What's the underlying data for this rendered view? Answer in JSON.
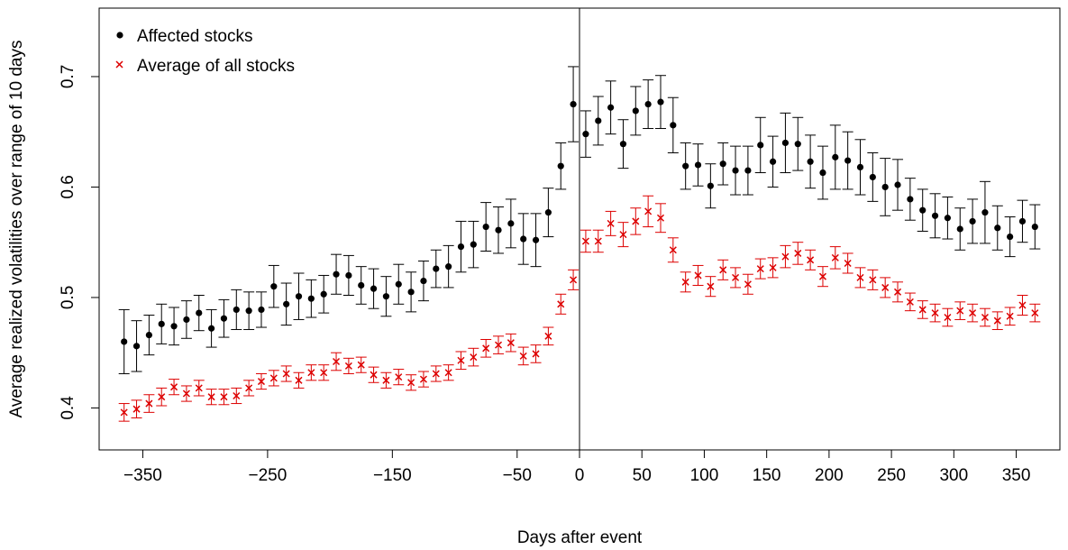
{
  "chart_data": {
    "type": "scatter",
    "title": "",
    "xlabel": "Days after event",
    "ylabel": "Average realized volatilities over range of 10 days",
    "xlim": [
      -385,
      385
    ],
    "ylim": [
      0.362,
      0.762
    ],
    "x_ticks": [
      -350,
      -250,
      -150,
      -50,
      0,
      50,
      100,
      150,
      200,
      250,
      300,
      350
    ],
    "x_tick_labels": [
      "−350",
      "−250",
      "−150",
      "−50",
      "0",
      "50",
      "100",
      "150",
      "200",
      "250",
      "300",
      "350"
    ],
    "y_ticks": [
      0.4,
      0.5,
      0.6,
      0.7
    ],
    "y_tick_labels": [
      "0.4",
      "0.5",
      "0.6",
      "0.7"
    ],
    "vline_x": 0,
    "grid": false,
    "legend_position": "top-left",
    "x": [
      -365,
      -355,
      -345,
      -335,
      -325,
      -315,
      -305,
      -295,
      -285,
      -275,
      -265,
      -255,
      -245,
      -235,
      -225,
      -215,
      -205,
      -195,
      -185,
      -175,
      -165,
      -155,
      -145,
      -135,
      -125,
      -115,
      -105,
      -95,
      -85,
      -75,
      -65,
      -55,
      -45,
      -35,
      -25,
      -15,
      -5,
      5,
      15,
      25,
      35,
      45,
      55,
      65,
      75,
      85,
      95,
      105,
      115,
      125,
      135,
      145,
      155,
      165,
      175,
      185,
      195,
      205,
      215,
      225,
      235,
      245,
      255,
      265,
      275,
      285,
      295,
      305,
      315,
      325,
      335,
      345,
      355,
      365
    ],
    "series": [
      {
        "name": "Affected stocks",
        "marker": "filled-circle",
        "color": "#000000",
        "values": [
          0.46,
          0.456,
          0.466,
          0.476,
          0.474,
          0.48,
          0.486,
          0.472,
          0.481,
          0.489,
          0.488,
          0.489,
          0.51,
          0.494,
          0.501,
          0.499,
          0.503,
          0.521,
          0.52,
          0.511,
          0.508,
          0.501,
          0.512,
          0.505,
          0.515,
          0.526,
          0.528,
          0.546,
          0.548,
          0.564,
          0.561,
          0.567,
          0.553,
          0.552,
          0.577,
          0.619,
          0.675,
          0.648,
          0.66,
          0.672,
          0.639,
          0.669,
          0.675,
          0.677,
          0.656,
          0.619,
          0.62,
          0.601,
          0.621,
          0.615,
          0.615,
          0.638,
          0.623,
          0.64,
          0.639,
          0.623,
          0.613,
          0.627,
          0.624,
          0.618,
          0.609,
          0.6,
          0.602,
          0.589,
          0.579,
          0.574,
          0.572,
          0.562,
          0.569,
          0.577,
          0.563,
          0.555,
          0.569,
          0.564
        ],
        "error": [
          0.029,
          0.023,
          0.018,
          0.018,
          0.017,
          0.017,
          0.016,
          0.017,
          0.017,
          0.018,
          0.017,
          0.016,
          0.019,
          0.019,
          0.021,
          0.017,
          0.017,
          0.018,
          0.018,
          0.017,
          0.018,
          0.018,
          0.018,
          0.018,
          0.018,
          0.017,
          0.019,
          0.023,
          0.021,
          0.022,
          0.021,
          0.022,
          0.023,
          0.024,
          0.022,
          0.021,
          0.034,
          0.021,
          0.022,
          0.024,
          0.022,
          0.022,
          0.022,
          0.024,
          0.025,
          0.021,
          0.019,
          0.02,
          0.019,
          0.022,
          0.022,
          0.025,
          0.023,
          0.027,
          0.024,
          0.024,
          0.024,
          0.029,
          0.026,
          0.025,
          0.022,
          0.026,
          0.023,
          0.019,
          0.019,
          0.02,
          0.019,
          0.019,
          0.02,
          0.028,
          0.02,
          0.018,
          0.019,
          0.02
        ]
      },
      {
        "name": "Average of all stocks",
        "marker": "cross",
        "color": "#dd0000",
        "values": [
          0.396,
          0.399,
          0.404,
          0.41,
          0.419,
          0.413,
          0.418,
          0.41,
          0.41,
          0.411,
          0.418,
          0.424,
          0.427,
          0.431,
          0.425,
          0.432,
          0.432,
          0.442,
          0.438,
          0.439,
          0.43,
          0.425,
          0.428,
          0.423,
          0.426,
          0.431,
          0.432,
          0.443,
          0.446,
          0.454,
          0.457,
          0.459,
          0.447,
          0.449,
          0.465,
          0.494,
          0.516,
          0.551,
          0.551,
          0.567,
          0.557,
          0.569,
          0.578,
          0.572,
          0.543,
          0.514,
          0.52,
          0.51,
          0.525,
          0.518,
          0.512,
          0.526,
          0.527,
          0.537,
          0.54,
          0.534,
          0.519,
          0.536,
          0.531,
          0.518,
          0.516,
          0.509,
          0.505,
          0.496,
          0.489,
          0.486,
          0.482,
          0.488,
          0.486,
          0.482,
          0.479,
          0.483,
          0.493,
          0.486
        ],
        "error": [
          0.008,
          0.008,
          0.008,
          0.008,
          0.007,
          0.007,
          0.007,
          0.007,
          0.007,
          0.007,
          0.007,
          0.007,
          0.007,
          0.007,
          0.007,
          0.007,
          0.007,
          0.008,
          0.007,
          0.007,
          0.007,
          0.007,
          0.007,
          0.007,
          0.007,
          0.007,
          0.007,
          0.008,
          0.008,
          0.008,
          0.008,
          0.008,
          0.008,
          0.008,
          0.008,
          0.009,
          0.009,
          0.01,
          0.01,
          0.011,
          0.011,
          0.012,
          0.014,
          0.013,
          0.011,
          0.009,
          0.009,
          0.009,
          0.009,
          0.009,
          0.009,
          0.009,
          0.009,
          0.01,
          0.01,
          0.009,
          0.009,
          0.01,
          0.009,
          0.009,
          0.009,
          0.009,
          0.009,
          0.008,
          0.008,
          0.008,
          0.008,
          0.008,
          0.008,
          0.008,
          0.008,
          0.008,
          0.009,
          0.008
        ]
      }
    ]
  }
}
